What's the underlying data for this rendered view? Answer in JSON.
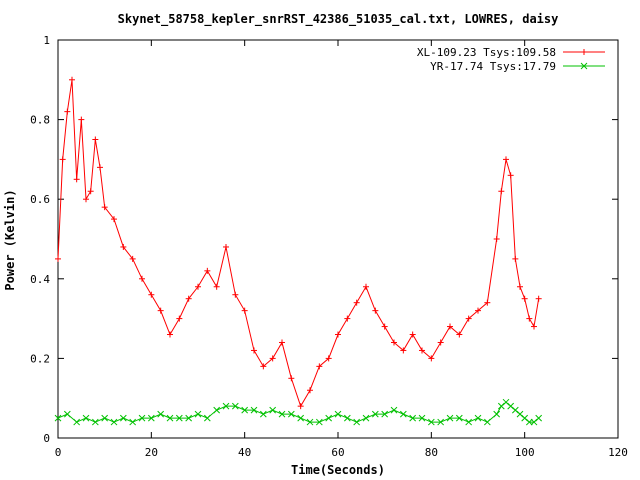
{
  "chart_data": {
    "type": "line",
    "title": "Skynet_58758_kepler_snrRST_42386_51035_cal.txt, LOWRES, daisy",
    "xlabel": "Time(Seconds)",
    "ylabel": "Power (Kelvin)",
    "xlim": [
      0,
      120
    ],
    "ylim": [
      0,
      1
    ],
    "x_ticks": [
      "0",
      "20",
      "40",
      "60",
      "80",
      "100",
      "120"
    ],
    "y_ticks": [
      "0",
      "0.2",
      "0.4",
      "0.6",
      "0.8",
      "1"
    ],
    "grid": false,
    "legend_position": "top-right",
    "series": [
      {
        "name": "XL-109.23 Tsys:109.58",
        "color": "#ff0000",
        "marker": "plus",
        "x": [
          0,
          1,
          2,
          3,
          4,
          5,
          6,
          7,
          8,
          9,
          10,
          12,
          14,
          16,
          18,
          20,
          22,
          24,
          26,
          28,
          30,
          32,
          34,
          36,
          38,
          40,
          42,
          44,
          46,
          48,
          50,
          52,
          54,
          56,
          58,
          60,
          62,
          64,
          66,
          68,
          70,
          72,
          74,
          76,
          78,
          80,
          82,
          84,
          86,
          88,
          90,
          92,
          94,
          95,
          96,
          97,
          98,
          99,
          100,
          101,
          102,
          103
        ],
        "values": [
          0.45,
          0.7,
          0.82,
          0.9,
          0.65,
          0.8,
          0.6,
          0.62,
          0.75,
          0.68,
          0.58,
          0.55,
          0.48,
          0.45,
          0.4,
          0.36,
          0.32,
          0.26,
          0.3,
          0.35,
          0.38,
          0.42,
          0.38,
          0.48,
          0.36,
          0.32,
          0.22,
          0.18,
          0.2,
          0.24,
          0.15,
          0.08,
          0.12,
          0.18,
          0.2,
          0.26,
          0.3,
          0.34,
          0.38,
          0.32,
          0.28,
          0.24,
          0.22,
          0.26,
          0.22,
          0.2,
          0.24,
          0.28,
          0.26,
          0.3,
          0.32,
          0.34,
          0.5,
          0.62,
          0.7,
          0.66,
          0.45,
          0.38,
          0.35,
          0.3,
          0.28,
          0.35
        ]
      },
      {
        "name": "YR-17.74 Tsys:17.79",
        "color": "#00c000",
        "marker": "x",
        "x": [
          0,
          2,
          4,
          6,
          8,
          10,
          12,
          14,
          16,
          18,
          20,
          22,
          24,
          26,
          28,
          30,
          32,
          34,
          36,
          38,
          40,
          42,
          44,
          46,
          48,
          50,
          52,
          54,
          56,
          58,
          60,
          62,
          64,
          66,
          68,
          70,
          72,
          74,
          76,
          78,
          80,
          82,
          84,
          86,
          88,
          90,
          92,
          94,
          95,
          96,
          97,
          98,
          99,
          100,
          101,
          102,
          103
        ],
        "values": [
          0.05,
          0.06,
          0.04,
          0.05,
          0.04,
          0.05,
          0.04,
          0.05,
          0.04,
          0.05,
          0.05,
          0.06,
          0.05,
          0.05,
          0.05,
          0.06,
          0.05,
          0.07,
          0.08,
          0.08,
          0.07,
          0.07,
          0.06,
          0.07,
          0.06,
          0.06,
          0.05,
          0.04,
          0.04,
          0.05,
          0.06,
          0.05,
          0.04,
          0.05,
          0.06,
          0.06,
          0.07,
          0.06,
          0.05,
          0.05,
          0.04,
          0.04,
          0.05,
          0.05,
          0.04,
          0.05,
          0.04,
          0.06,
          0.08,
          0.09,
          0.08,
          0.07,
          0.06,
          0.05,
          0.04,
          0.04,
          0.05
        ]
      }
    ]
  }
}
